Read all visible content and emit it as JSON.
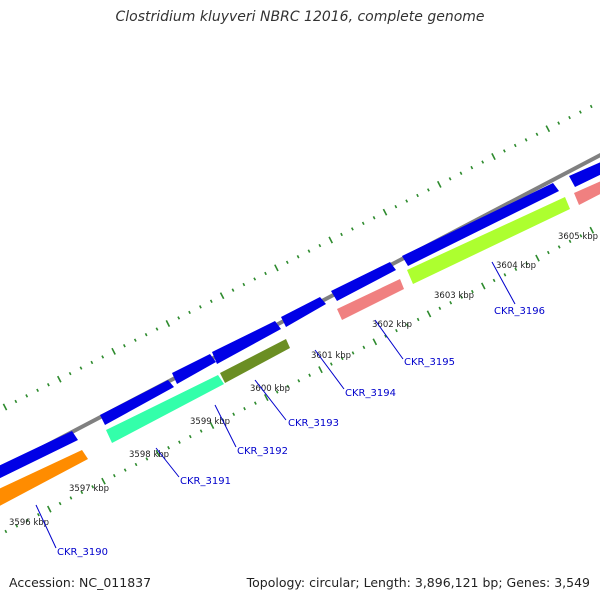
{
  "title": "Clostridium kluyveri NBRC 12016, complete genome",
  "footer": {
    "accession": "Accession: NC_011837",
    "summary": "Topology: circular; Length: 3,896,121 bp; Genes: 3,549"
  },
  "colors": {
    "backbone": "#808080",
    "forward_gene": "#0000e6",
    "tick": "#2e8b2e",
    "label_line": "#0000cc"
  },
  "scale_ticks": [
    "3596 kbp",
    "3597 kbp",
    "3598 kbp",
    "3599 kbp",
    "3600 kbp",
    "3601 kbp",
    "3602 kbp",
    "3603 kbp",
    "3604 kbp",
    "3605 kbp"
  ],
  "genes": [
    {
      "name": "CKR_3190",
      "color": "#ff8c00"
    },
    {
      "name": "CKR_3191",
      "color": "#33ffaa"
    },
    {
      "name": "CKR_3192",
      "color": "#33ffaa"
    },
    {
      "name": "CKR_3193",
      "color": "#6b8e23"
    },
    {
      "name": "CKR_3194",
      "color": "#f08080"
    },
    {
      "name": "CKR_3195",
      "color": "#f08080"
    },
    {
      "name": "CKR_3196",
      "color": "#adff2f"
    }
  ]
}
